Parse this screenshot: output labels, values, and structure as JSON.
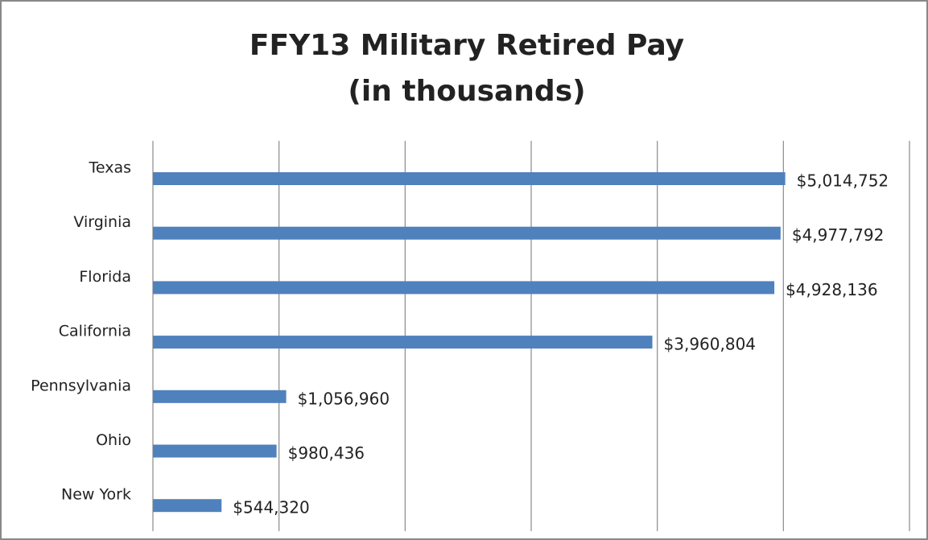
{
  "chart_data": {
    "type": "bar",
    "orientation": "horizontal",
    "title": [
      "FFY13 Military Retired Pay",
      "(in thousands)"
    ],
    "categories": [
      "Texas",
      "Virginia",
      "Florida",
      "California",
      "Pennsylvania",
      "Ohio",
      "New York"
    ],
    "values": [
      5014752,
      4977792,
      4928136,
      3960804,
      1056960,
      980436,
      544320
    ],
    "value_labels": [
      "$5,014,752",
      "$4,977,792",
      "$4,928,136",
      "$3,960,804",
      "$1,056,960",
      "$980,436",
      "$544,320"
    ],
    "color": "#4f81bd",
    "xlim": [
      0,
      6000000
    ],
    "xticks": [
      0,
      1000000,
      2000000,
      3000000,
      4000000,
      5000000,
      6000000
    ],
    "grid": true
  }
}
